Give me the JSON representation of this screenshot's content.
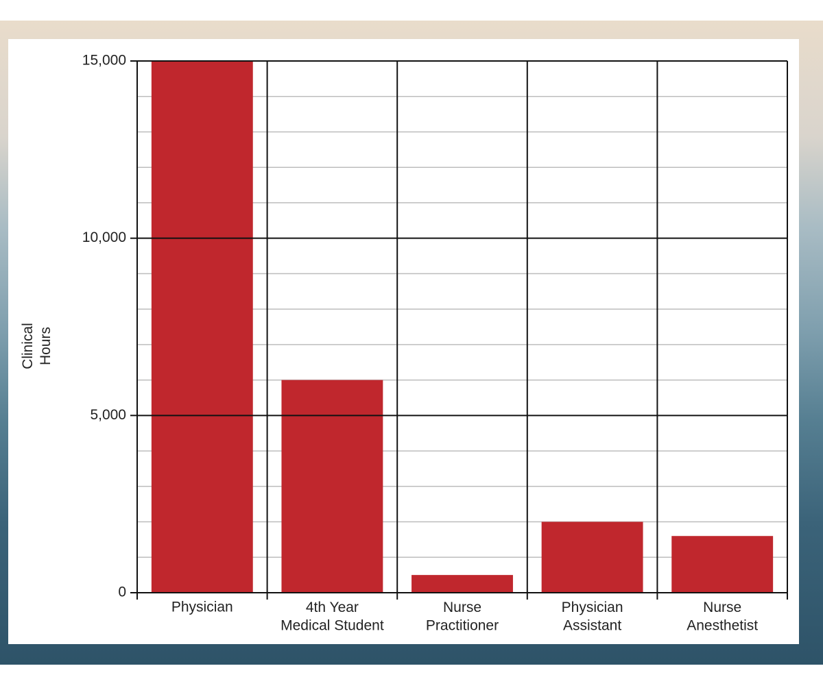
{
  "chart_data": {
    "type": "bar",
    "y_label": "Clinical\nHours",
    "categories": [
      "Physician",
      "4th Year\nMedical Student",
      "Nurse\nPractitioner",
      "Physician\nAssistant",
      "Nurse\nAnesthetist"
    ],
    "values": [
      15000,
      6000,
      500,
      2000,
      1600
    ],
    "color": "#c0272d",
    "ylim": [
      0,
      15000
    ],
    "yticks": [
      {
        "value": 0,
        "label": "0"
      },
      {
        "value": 5000,
        "label": "5,000"
      },
      {
        "value": 10000,
        "label": "10,000"
      },
      {
        "value": 15000,
        "label": "15,000"
      }
    ],
    "minor_yticks": [
      1000,
      2000,
      3000,
      4000,
      6000,
      7000,
      8000,
      9000,
      11000,
      12000,
      13000,
      14000
    ],
    "grid": true
  }
}
